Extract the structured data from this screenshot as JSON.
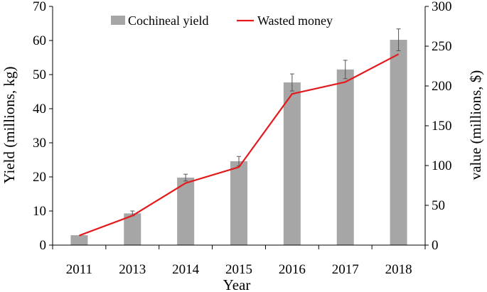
{
  "chart_data": {
    "type": "bar-line",
    "categories": [
      "2011",
      "2013",
      "2014",
      "2015",
      "2016",
      "2017",
      "2018"
    ],
    "xlabel": "Year",
    "ylabel_left": "Yield (millions, kg)",
    "ylabel_right": "value (millions, $)",
    "ylim_left": [
      0,
      70
    ],
    "ylim_right": [
      0,
      300
    ],
    "yticks_left": [
      "0",
      "10",
      "20",
      "30",
      "40",
      "50",
      "60",
      "70"
    ],
    "yticks_right": [
      "0",
      "50",
      "100",
      "150",
      "200",
      "250",
      "300"
    ],
    "legend_position": "top",
    "grid": false,
    "series": [
      {
        "name": "Cochineal yield",
        "kind": "bar",
        "axis": "left",
        "color": "#a6a6a6",
        "values": [
          2.9,
          9.3,
          19.8,
          24.6,
          47.7,
          51.5,
          60.2
        ],
        "errors": [
          0.0,
          0.7,
          1.0,
          1.4,
          2.5,
          2.7,
          3.2
        ]
      },
      {
        "name": "Wasted money",
        "kind": "line",
        "axis": "right",
        "color": "#e31a1c",
        "values": [
          12,
          37,
          78,
          98,
          190,
          205,
          240
        ]
      }
    ]
  }
}
